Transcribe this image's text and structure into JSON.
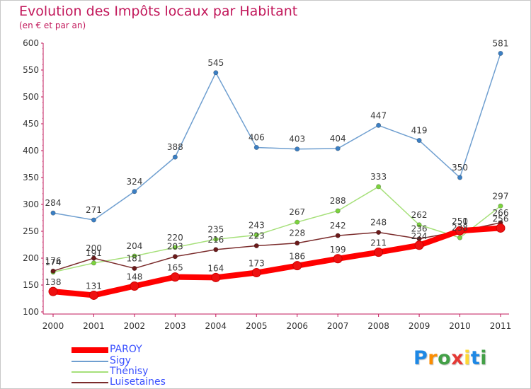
{
  "header": {
    "title": "Evolution des Impôts locaux par Habitant",
    "subtitle": "(en € et par an)"
  },
  "colors": {
    "title": "#c2185b",
    "axis": "#c2185b",
    "legend_text": "#3a50ff"
  },
  "logo": {
    "text": "Proxiti"
  },
  "chart_data": {
    "type": "line",
    "title": "Evolution des Impôts locaux par Habitant",
    "subtitle": "(en € et par an)",
    "xlabel": "",
    "ylabel": "",
    "ylim": [
      100,
      600
    ],
    "yticks": [
      100,
      150,
      200,
      250,
      300,
      350,
      400,
      450,
      500,
      550,
      600
    ],
    "categories": [
      "2000",
      "2001",
      "2002",
      "2003",
      "2004",
      "2005",
      "2006",
      "2007",
      "2008",
      "2009",
      "2010",
      "2011"
    ],
    "legend_position": "bottom-left",
    "grid": false,
    "series": [
      {
        "name": "PAROY",
        "color": "#ff0000",
        "marker": "#ee1111",
        "values": [
          138,
          131,
          148,
          165,
          164,
          173,
          186,
          199,
          211,
          224,
          251,
          256
        ]
      },
      {
        "name": "Sigy",
        "color": "#6f9fd0",
        "marker": "#3b7fc4",
        "values": [
          284,
          271,
          324,
          388,
          545,
          406,
          403,
          404,
          447,
          419,
          350,
          581
        ]
      },
      {
        "name": "Thénisy",
        "color": "#a6e07a",
        "marker": "#7cd33e",
        "values": [
          174,
          191,
          204,
          220,
          235,
          243,
          267,
          288,
          333,
          262,
          238,
          297
        ]
      },
      {
        "name": "Luisetaines",
        "color": "#7b2c2c",
        "marker": "#6b1a1a",
        "values": [
          176,
          200,
          181,
          203,
          216,
          223,
          228,
          242,
          248,
          236,
          250,
          266
        ]
      }
    ],
    "data_labels": [
      [
        "138",
        "131",
        "148",
        "165",
        "164",
        "173",
        "186",
        "199",
        "211",
        "224",
        "251",
        "256"
      ],
      [
        "284",
        "271",
        "324",
        "388",
        "545",
        "406",
        "403",
        "404",
        "447",
        "419",
        "350",
        "581"
      ],
      [
        "174",
        "191",
        "204",
        "220",
        "235",
        "243",
        "267",
        "288",
        "333",
        "262",
        "238",
        "297"
      ],
      [
        "176",
        "200",
        "181",
        "203",
        "216",
        "223",
        "228",
        "242",
        "248",
        "236",
        "250",
        "266"
      ]
    ]
  }
}
